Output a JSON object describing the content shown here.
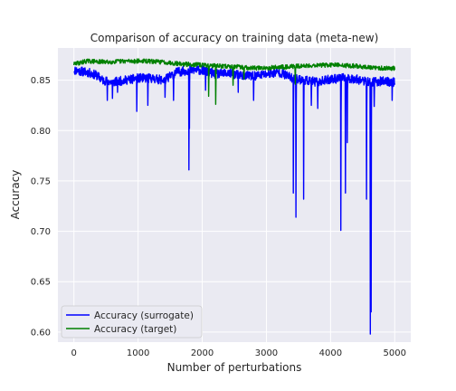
{
  "chart_data": {
    "type": "line",
    "title": "Comparison of accuracy on training data (meta-new)",
    "xlabel": "Number of perturbations",
    "ylabel": "Accuracy",
    "xlim": [
      -250,
      5250
    ],
    "ylim": [
      0.59,
      0.882
    ],
    "xticks": [
      0,
      1000,
      2000,
      3000,
      4000,
      5000
    ],
    "yticks": [
      0.6,
      0.65,
      0.7,
      0.75,
      0.8,
      0.85
    ],
    "grid": true,
    "legend": "lower-left",
    "series": [
      {
        "name": "Accuracy (surrogate)",
        "color": "#0000ff",
        "base": [
          [
            0,
            0.86
          ],
          [
            200,
            0.858
          ],
          [
            350,
            0.855
          ],
          [
            450,
            0.85
          ],
          [
            600,
            0.848
          ],
          [
            800,
            0.85
          ],
          [
            1000,
            0.852
          ],
          [
            1200,
            0.852
          ],
          [
            1400,
            0.85
          ],
          [
            1600,
            0.858
          ],
          [
            1800,
            0.86
          ],
          [
            2000,
            0.86
          ],
          [
            2200,
            0.856
          ],
          [
            2400,
            0.857
          ],
          [
            2600,
            0.855
          ],
          [
            2800,
            0.854
          ],
          [
            3000,
            0.856
          ],
          [
            3200,
            0.858
          ],
          [
            3400,
            0.852
          ],
          [
            3600,
            0.85
          ],
          [
            3800,
            0.848
          ],
          [
            4000,
            0.851
          ],
          [
            4200,
            0.852
          ],
          [
            4400,
            0.851
          ],
          [
            4600,
            0.848
          ],
          [
            4800,
            0.849
          ],
          [
            5000,
            0.848
          ]
        ],
        "dips": [
          [
            520,
            0.83
          ],
          [
            600,
            0.832
          ],
          [
            680,
            0.838
          ],
          [
            980,
            0.819
          ],
          [
            1150,
            0.825
          ],
          [
            1420,
            0.833
          ],
          [
            1550,
            0.83
          ],
          [
            1790,
            0.761
          ],
          [
            1800,
            0.802
          ],
          [
            2050,
            0.84
          ],
          [
            2560,
            0.838
          ],
          [
            2800,
            0.83
          ],
          [
            3420,
            0.738
          ],
          [
            3460,
            0.714
          ],
          [
            3580,
            0.732
          ],
          [
            3700,
            0.825
          ],
          [
            3800,
            0.822
          ],
          [
            4160,
            0.701
          ],
          [
            4230,
            0.738
          ],
          [
            4260,
            0.788
          ],
          [
            4560,
            0.732
          ],
          [
            4620,
            0.598
          ],
          [
            4630,
            0.62
          ],
          [
            4680,
            0.824
          ],
          [
            4960,
            0.83
          ]
        ]
      },
      {
        "name": "Accuracy (target)",
        "color": "#008000",
        "base": [
          [
            0,
            0.866
          ],
          [
            200,
            0.869
          ],
          [
            500,
            0.868
          ],
          [
            800,
            0.869
          ],
          [
            1100,
            0.869
          ],
          [
            1400,
            0.868
          ],
          [
            1700,
            0.866
          ],
          [
            2000,
            0.865
          ],
          [
            2300,
            0.864
          ],
          [
            2600,
            0.863
          ],
          [
            2900,
            0.862
          ],
          [
            3200,
            0.863
          ],
          [
            3500,
            0.864
          ],
          [
            3800,
            0.865
          ],
          [
            4100,
            0.865
          ],
          [
            4400,
            0.864
          ],
          [
            4700,
            0.862
          ],
          [
            5000,
            0.862
          ]
        ],
        "dips": [
          [
            2100,
            0.834
          ],
          [
            2210,
            0.826
          ],
          [
            2480,
            0.845
          ],
          [
            2650,
            0.851
          ],
          [
            3450,
            0.846
          ]
        ]
      }
    ]
  }
}
